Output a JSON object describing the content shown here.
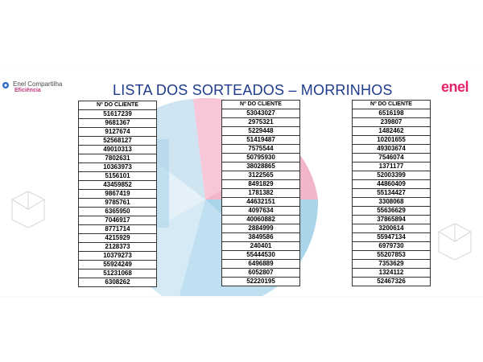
{
  "header": {
    "logo_left_brand": "Enel Compartilha",
    "logo_left_sub": "Eficiência",
    "title": "LISTA DOS SORTEADOS – MORRINHOS",
    "logo_right": "enel"
  },
  "tables": [
    {
      "header": "Nº DO CLIENTE",
      "rows": [
        "51617239",
        "9681367",
        "9127674",
        "52568127",
        "49010313",
        "7802631",
        "10363973",
        "5156101",
        "43459852",
        "9867419",
        "9785761",
        "6365950",
        "7046917",
        "8771714",
        "4215929",
        "2128373",
        "10379273",
        "55924249",
        "51231068",
        "6308262"
      ]
    },
    {
      "header": "Nº DO CLIENTE",
      "rows": [
        "53043027",
        "2975321",
        "5229448",
        "51419487",
        "7575544",
        "50795930",
        "38028865",
        "3122565",
        "8491829",
        "1781382",
        "44632151",
        "4097634",
        "40060882",
        "2884999",
        "3849586",
        "240401",
        "55444530",
        "6496889",
        "6052807",
        "52220195"
      ]
    },
    {
      "header": "Nº DO CLIENTE",
      "rows": [
        "6516198",
        "239807",
        "1482462",
        "10201655",
        "49303674",
        "7546074",
        "1371177",
        "52003399",
        "44860409",
        "55134427",
        "3308068",
        "55636629",
        "37865894",
        "3200614",
        "55947134",
        "6979730",
        "55207853",
        "7353629",
        "1324112",
        "52467326"
      ]
    }
  ]
}
